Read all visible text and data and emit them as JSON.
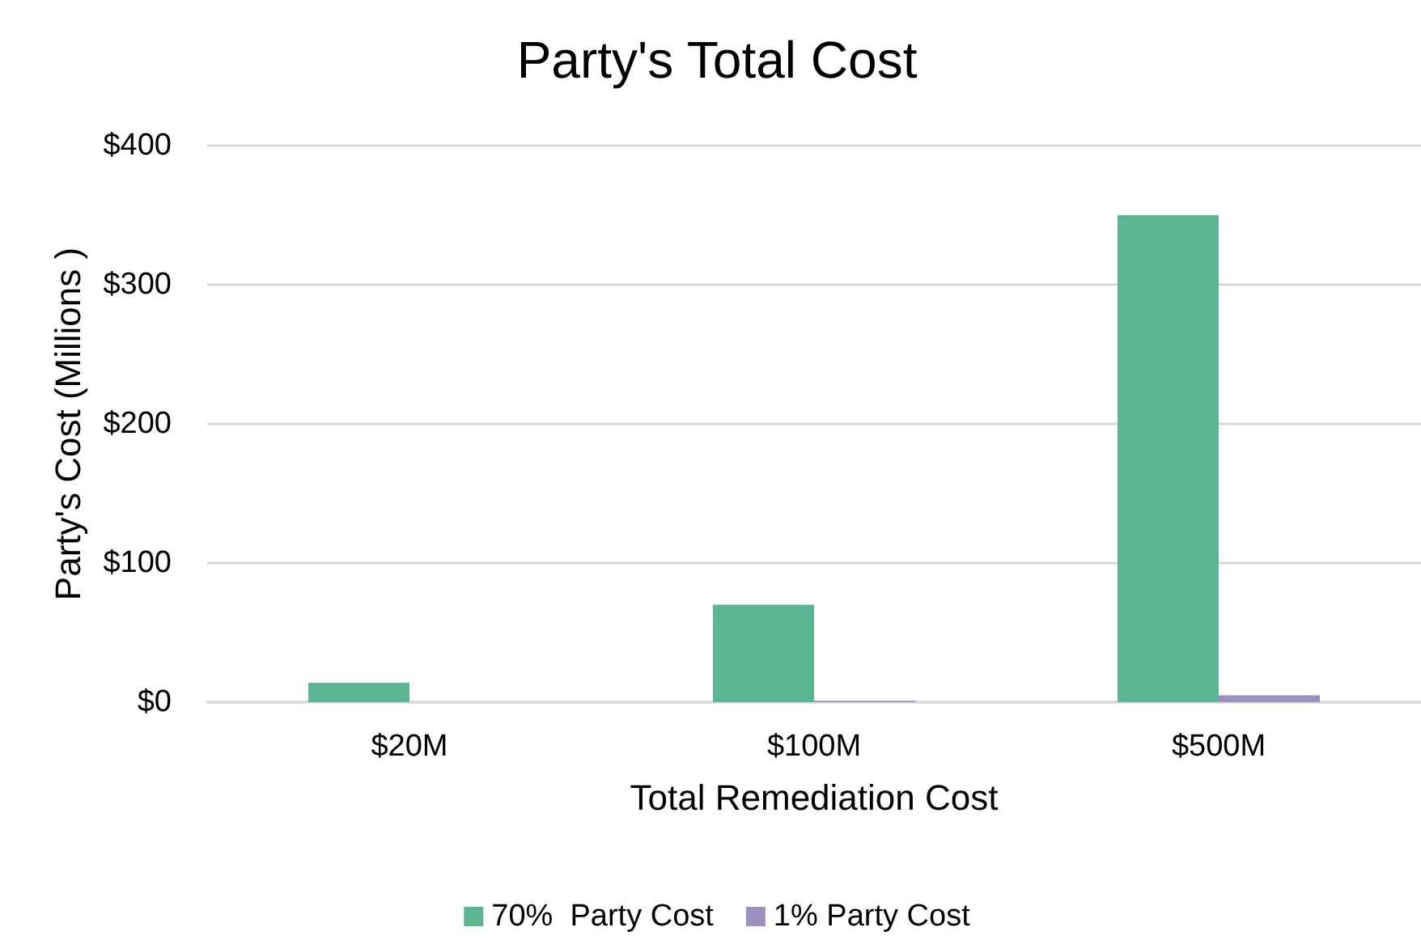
{
  "chart_data": {
    "type": "bar",
    "title": "Party's Total Cost",
    "xlabel": "Total Remediation Cost",
    "ylabel": "Party's Cost (Millions )",
    "categories": [
      "$20M",
      "$100M",
      "$500M"
    ],
    "series": [
      {
        "name": "70%  Party Cost",
        "color": "#5ab590",
        "values": [
          14,
          70,
          350
        ]
      },
      {
        "name": "1% Party Cost",
        "color": "#9d90c0",
        "values": [
          null,
          1,
          5
        ]
      }
    ],
    "ylim": [
      0,
      400
    ],
    "yticks": [
      {
        "value": 0,
        "label": "$0"
      },
      {
        "value": 100,
        "label": "$100"
      },
      {
        "value": 200,
        "label": "$200"
      },
      {
        "value": 300,
        "label": "$300"
      },
      {
        "value": 400,
        "label": "$400"
      }
    ],
    "grid": "y",
    "legend": "bottom"
  }
}
